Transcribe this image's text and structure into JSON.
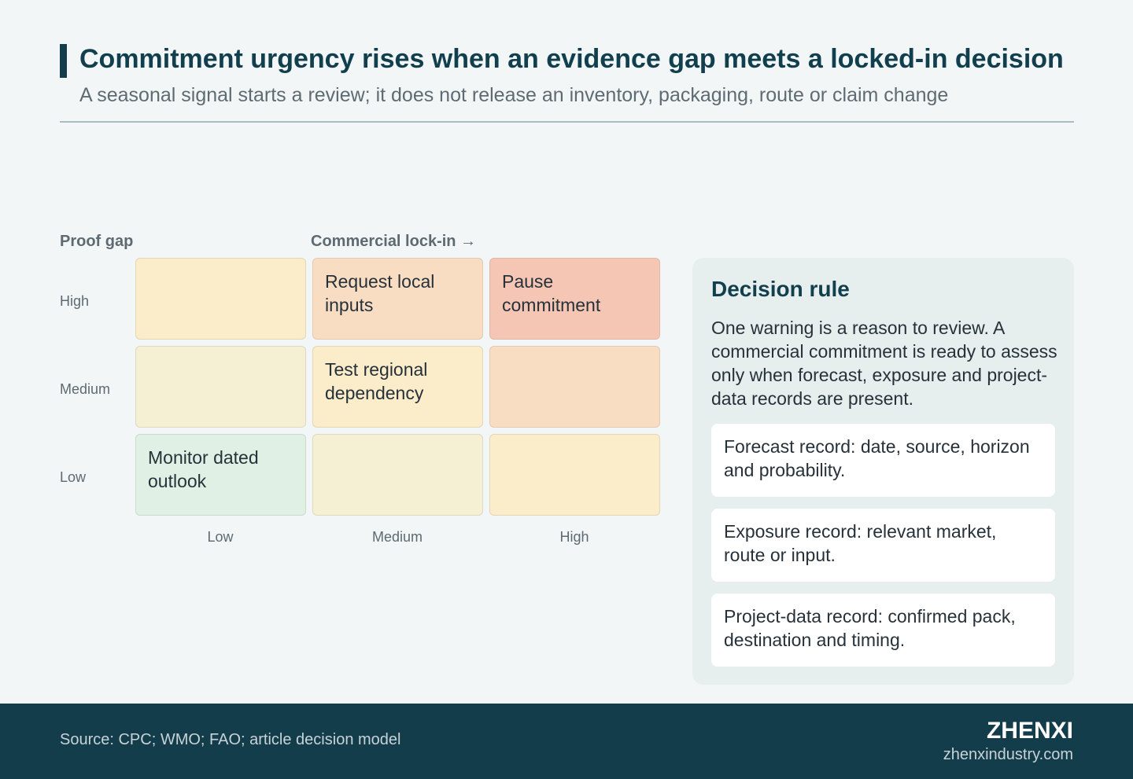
{
  "header": {
    "title": "Commitment urgency rises when an evidence gap meets a locked-in decision",
    "subtitle": "A seasonal signal starts a review; it does not release an inventory, packaging, route or claim change"
  },
  "matrix": {
    "y_axis_title": "Proof gap",
    "x_axis_title": "Commercial lock-in →",
    "row_labels": [
      "High",
      "Medium",
      "Low"
    ],
    "col_labels": [
      "Low",
      "Medium",
      "High"
    ],
    "cells": [
      [
        {
          "text": "",
          "color": "#fbecca"
        },
        {
          "text": "Request local inputs",
          "color": "#f8ddc2"
        },
        {
          "text": "Pause commitment",
          "color": "#f5c6b4"
        }
      ],
      [
        {
          "text": "",
          "color": "#f5f0d4"
        },
        {
          "text": "Test regional dependency",
          "color": "#fbecca"
        },
        {
          "text": "",
          "color": "#f8ddc2"
        }
      ],
      [
        {
          "text": "Monitor dated outlook",
          "color": "#e1f0e5"
        },
        {
          "text": "",
          "color": "#f5f0d4"
        },
        {
          "text": "",
          "color": "#fbecca"
        }
      ]
    ]
  },
  "decision_rule": {
    "heading": "Decision rule",
    "body": "One warning is a reason to review. A commercial commitment is ready to assess only when forecast, exposure and project-data records are present.",
    "records": [
      "Forecast record: date, source, horizon and probability.",
      "Exposure record: relevant market, route or input.",
      "Project-data record: confirmed pack, destination and timing."
    ]
  },
  "footer": {
    "source": "Source: CPC; WMO; FAO; article decision model",
    "brand": "ZHENXI",
    "url": "zhenxindustry.com"
  }
}
